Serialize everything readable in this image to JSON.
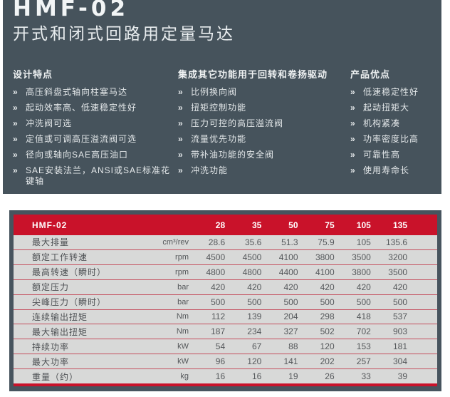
{
  "page": {
    "title": "HMF-02",
    "subtitle": "开式和闭式回路用定量马达"
  },
  "features": {
    "bullet": "»",
    "columns": [
      {
        "heading": "设计特点",
        "items": [
          "高压斜盘式轴向柱塞马达",
          "起动效率高、低速稳定性好",
          "冲洗阀可选",
          "定值或可调高压溢流阀可选",
          "径向或轴向SAE高压油口",
          "SAE安装法兰，ANSI或SAE标准花键轴"
        ]
      },
      {
        "heading": "集成其它功能用于回转和卷扬驱动",
        "items": [
          "比例换向阀",
          "扭矩控制功能",
          "压力可控的高压溢流阀",
          "流量优先功能",
          "带补油功能的安全阀",
          "冲洗功能"
        ]
      },
      {
        "heading": "产品优点",
        "items": [
          "低速稳定性好",
          "起动扭矩大",
          "机构紧凑",
          "功率密度比高",
          "可靠性高",
          "使用寿命长"
        ]
      }
    ]
  },
  "table": {
    "model": "HMF-02",
    "size_headers": [
      "28",
      "35",
      "50",
      "75",
      "105",
      "135"
    ],
    "rows": [
      {
        "label": "最大排量",
        "unit": "cm³/rev",
        "values": [
          "28.6",
          "35.6",
          "51.3",
          "75.9",
          "105",
          "135.6"
        ]
      },
      {
        "label": "额定工作转速",
        "unit": "rpm",
        "values": [
          "4500",
          "4500",
          "4100",
          "3800",
          "3500",
          "3200"
        ]
      },
      {
        "label": "最高转速（瞬时）",
        "unit": "rpm",
        "values": [
          "4800",
          "4800",
          "4400",
          "4100",
          "3800",
          "3500"
        ]
      },
      {
        "label": "额定压力",
        "unit": "bar",
        "values": [
          "420",
          "420",
          "420",
          "420",
          "420",
          "420"
        ]
      },
      {
        "label": "尖峰压力（瞬时）",
        "unit": "bar",
        "values": [
          "500",
          "500",
          "500",
          "500",
          "500",
          "500"
        ]
      },
      {
        "label": "连续输出扭矩",
        "unit": "Nm",
        "values": [
          "112",
          "139",
          "204",
          "298",
          "418",
          "537"
        ]
      },
      {
        "label": "最大输出扭矩",
        "unit": "Nm",
        "values": [
          "187",
          "234",
          "327",
          "502",
          "702",
          "903"
        ]
      },
      {
        "label": "持续功率",
        "unit": "kW",
        "values": [
          "54",
          "67",
          "88",
          "120",
          "153",
          "181"
        ]
      },
      {
        "label": "最大功率",
        "unit": "kW",
        "values": [
          "96",
          "120",
          "141",
          "202",
          "257",
          "304"
        ]
      },
      {
        "label": "重量（约）",
        "unit": "kg",
        "values": [
          "16",
          "16",
          "19",
          "26",
          "33",
          "39"
        ]
      }
    ]
  },
  "colors": {
    "hero_background": "#46535c",
    "accent_red": "#c9122a",
    "table_body": "#d8d9d8",
    "text_light": "#e9edef",
    "text_dark": "#4d5053"
  }
}
